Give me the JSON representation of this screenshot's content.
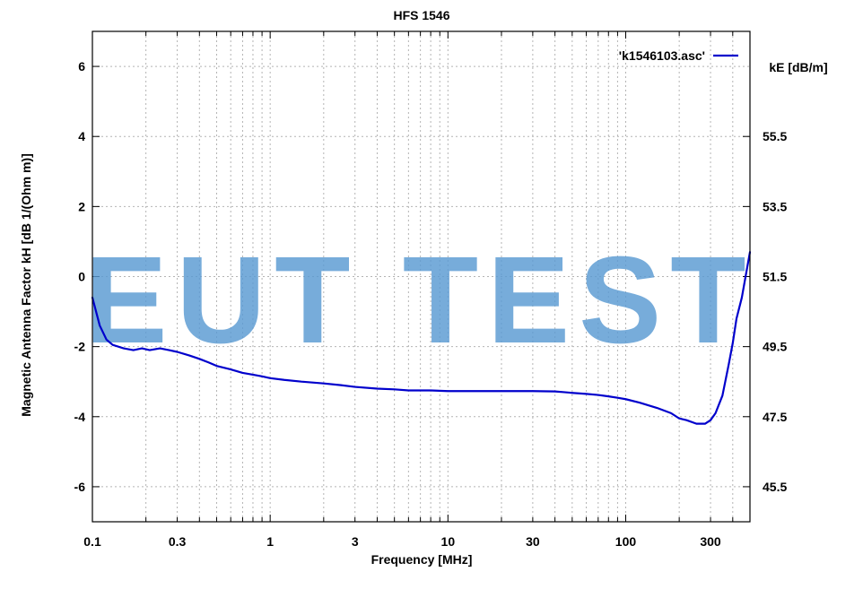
{
  "chart_data": {
    "type": "line",
    "title": "HFS 1546",
    "xlabel": "Frequency [MHz]",
    "ylabel": "Magnetic Antenna Factor kH [dB 1/(Ohm m)]",
    "y2label": "kE [dB/m]",
    "xscale": "log",
    "xlim": [
      0.1,
      500
    ],
    "ylim": [
      -7,
      7
    ],
    "y2lim": [
      44.5,
      58.5
    ],
    "grid": true,
    "legend_position": "top-right",
    "x_ticks": [
      {
        "value": 0.1,
        "label": "0.1"
      },
      {
        "value": 0.3,
        "label": "0.3"
      },
      {
        "value": 1,
        "label": "1"
      },
      {
        "value": 3,
        "label": "3"
      },
      {
        "value": 10,
        "label": "10"
      },
      {
        "value": 30,
        "label": "30"
      },
      {
        "value": 100,
        "label": "100"
      },
      {
        "value": 300,
        "label": "300"
      }
    ],
    "y_ticks": [
      {
        "value": 6,
        "label": "6"
      },
      {
        "value": 4,
        "label": "4"
      },
      {
        "value": 2,
        "label": "2"
      },
      {
        "value": 0,
        "label": "0"
      },
      {
        "value": -2,
        "label": "-2"
      },
      {
        "value": -4,
        "label": "-4"
      },
      {
        "value": -6,
        "label": "-6"
      }
    ],
    "y2_ticks": [
      {
        "value": 55.5,
        "label": "55.5"
      },
      {
        "value": 53.5,
        "label": "53.5"
      },
      {
        "value": 51.5,
        "label": "51.5"
      },
      {
        "value": 49.5,
        "label": "49.5"
      },
      {
        "value": 47.5,
        "label": "47.5"
      },
      {
        "value": 45.5,
        "label": "45.5"
      }
    ],
    "series": [
      {
        "name": "'k1546103.asc'",
        "color": "#0000cc",
        "x": [
          0.1,
          0.11,
          0.12,
          0.13,
          0.15,
          0.17,
          0.19,
          0.21,
          0.24,
          0.27,
          0.3,
          0.35,
          0.4,
          0.45,
          0.5,
          0.6,
          0.7,
          0.8,
          0.9,
          1,
          1.2,
          1.5,
          2,
          2.5,
          3,
          4,
          5,
          6,
          7,
          8,
          10,
          15,
          20,
          30,
          40,
          45,
          50,
          60,
          70,
          80,
          90,
          100,
          120,
          150,
          180,
          200,
          220,
          250,
          280,
          300,
          320,
          350,
          380,
          400,
          420,
          450,
          480,
          500
        ],
        "y": [
          -0.6,
          -1.4,
          -1.8,
          -1.95,
          -2.05,
          -2.1,
          -2.05,
          -2.1,
          -2.05,
          -2.1,
          -2.15,
          -2.25,
          -2.35,
          -2.45,
          -2.55,
          -2.65,
          -2.75,
          -2.8,
          -2.85,
          -2.9,
          -2.95,
          -3.0,
          -3.05,
          -3.1,
          -3.15,
          -3.2,
          -3.22,
          -3.25,
          -3.25,
          -3.25,
          -3.27,
          -3.27,
          -3.27,
          -3.27,
          -3.28,
          -3.3,
          -3.32,
          -3.35,
          -3.38,
          -3.42,
          -3.46,
          -3.5,
          -3.6,
          -3.75,
          -3.9,
          -4.05,
          -4.1,
          -4.2,
          -4.2,
          -4.1,
          -3.9,
          -3.4,
          -2.5,
          -1.9,
          -1.2,
          -0.6,
          0.2,
          0.7
        ]
      }
    ]
  },
  "watermark": {
    "text": "EUT TEST",
    "color": "#5a9ad3"
  }
}
